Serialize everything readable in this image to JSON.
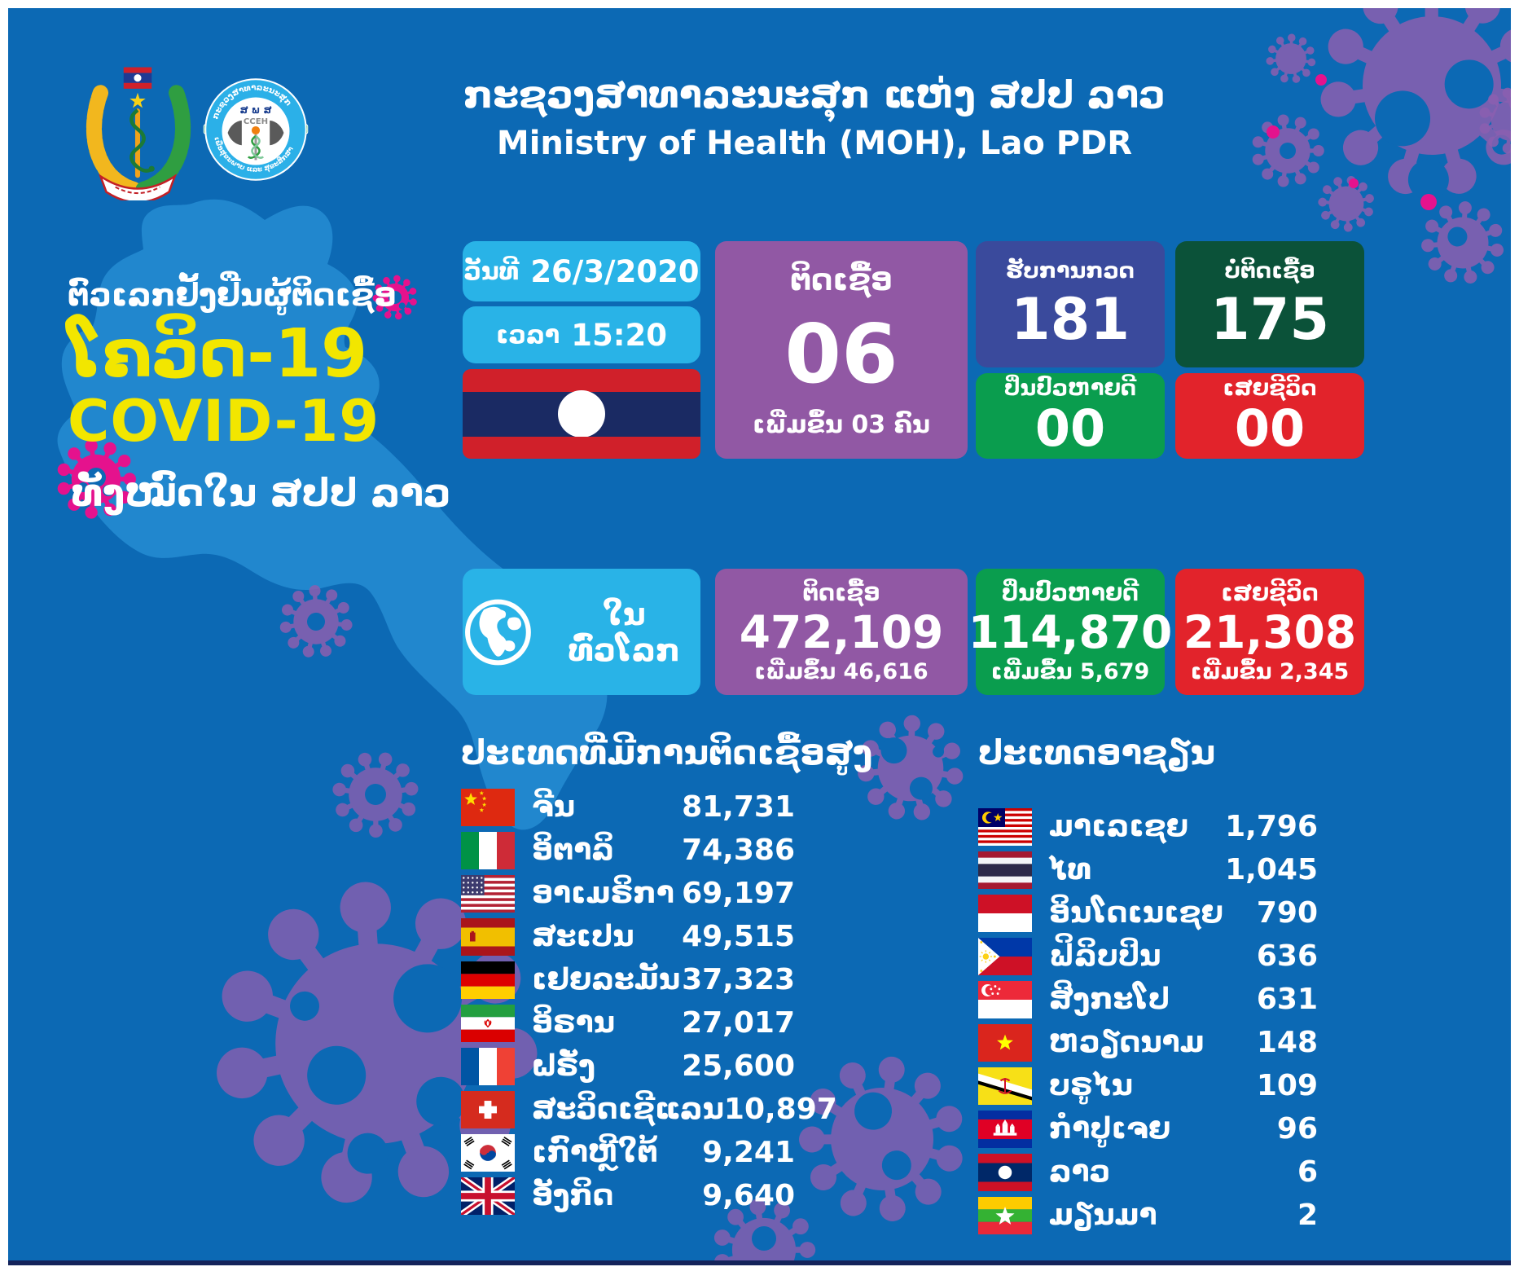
{
  "header": {
    "title_lao": "ກະຊວງສາທາລະນະສຸກ ແຫ່ງ ສປປ ລາວ",
    "title_en": "Ministry of Health (MOH), Lao PDR",
    "cceh": {
      "ring_top": "ກະຊວງສາທາລະນະສຸກ",
      "ring_bottom": "ເພື່ອສຸຂະພາບ ແລະ ສຸຂະສຶກສາ",
      "abbr_lao": "ສ ພ ສ",
      "abbr_en": "CCEH"
    }
  },
  "intro": {
    "line1": "ຕົວເລກຢັ້ງຢືນຜູ້ຕິດເຊື້ອ",
    "covid_lao": "ໂຄວິດ-19",
    "covid_en": "COVID-19",
    "line2": "ທັງໝົດໃນ ສປປ ລາວ"
  },
  "laos_stats": {
    "date_label": "ວັນທີ",
    "date_value": "26/3/2020",
    "time_label": "ເວລາ",
    "time_value": "15:20",
    "infected": {
      "label": "ຕິດເຊື້ອ",
      "value": "06",
      "change": "ເພີ່ມຂຶ້ນ 03 ຄົນ"
    },
    "tested": {
      "label": "ຮັບການກວດ",
      "value": "181"
    },
    "negative": {
      "label": "ບໍ່ຕິດເຊື້ອ",
      "value": "175"
    },
    "recovered": {
      "label": "ປິ່ນປົວຫາຍດີ",
      "value": "00"
    },
    "deaths": {
      "label": "ເສຍຊີວິດ",
      "value": "00"
    }
  },
  "world_stats": {
    "label": "ໃນທົ່ວໂລກ",
    "infected": {
      "label": "ຕິດເຊື້ອ",
      "value": "472,109",
      "change": "ເພີ່ມຂຶ້ນ 46,616"
    },
    "recovered": {
      "label": "ປິ່ນປົວຫາຍດີ",
      "value": "114,870",
      "change": "ເພີ່ມຂຶ້ນ 5,679"
    },
    "deaths": {
      "label": "ເສຍຊີວິດ",
      "value": "21,308",
      "change": "ເພີ່ມຂຶ້ນ 2,345"
    }
  },
  "high_infection_list": {
    "title": "ປະເທດທີ່ມີການຕິດເຊື້ອສູງ",
    "rows": [
      {
        "flag": "china",
        "name": "ຈີນ",
        "value": "81,731"
      },
      {
        "flag": "italy",
        "name": "ອິຕາລິ",
        "value": "74,386"
      },
      {
        "flag": "usa",
        "name": "ອາເມຣິກາ",
        "value": "69,197"
      },
      {
        "flag": "spain",
        "name": "ສະເປນ",
        "value": "49,515"
      },
      {
        "flag": "germany",
        "name": "ເຢຍລະມັນ",
        "value": "37,323"
      },
      {
        "flag": "iran",
        "name": "ອິຣານ",
        "value": "27,017"
      },
      {
        "flag": "france",
        "name": "ຝຣັ່ງ",
        "value": "25,600"
      },
      {
        "flag": "switzerland",
        "name": "ສະວິດເຊີແລນ",
        "value": "10,897"
      },
      {
        "flag": "south-korea",
        "name": "ເກົາຫຼີໃຕ້",
        "value": "9,241"
      },
      {
        "flag": "uk",
        "name": "ອັງກິດ",
        "value": "9,640"
      }
    ]
  },
  "asean_list": {
    "title": "ປະເທດອາຊຽນ",
    "rows": [
      {
        "flag": "malaysia",
        "name": "ມາເລເຊຍ",
        "value": "1,796"
      },
      {
        "flag": "thailand",
        "name": "ໄທ",
        "value": "1,045"
      },
      {
        "flag": "indonesia",
        "name": "ອິນໂດເນເຊຍ",
        "value": "790"
      },
      {
        "flag": "philippines",
        "name": "ຟິລິບປິນ",
        "value": "636"
      },
      {
        "flag": "singapore",
        "name": "ສິງກະໂປ",
        "value": "631"
      },
      {
        "flag": "vietnam",
        "name": "ຫວຽດນາມ",
        "value": "148"
      },
      {
        "flag": "brunei",
        "name": "ບຣູໄນ",
        "value": "109"
      },
      {
        "flag": "cambodia",
        "name": "ກຳປູເຈຍ",
        "value": "96"
      },
      {
        "flag": "laos",
        "name": "ລາວ",
        "value": "6"
      },
      {
        "flag": "myanmar",
        "name": "ມຽນມາ",
        "value": "2"
      }
    ]
  },
  "colors": {
    "background": "#0c69b4",
    "map": "#2187ce",
    "lightblue": "#29b3e7",
    "purple": "#9158a4",
    "indigo": "#3a4a9c",
    "darkgreen": "#0b5239",
    "green": "#0a9d4e",
    "red": "#e2232b",
    "yellow": "#f2e600",
    "virus_purple": "#8b5fb0",
    "virus_magenta": "#e5128d"
  },
  "chart_data": [
    {
      "type": "table",
      "title": "COVID-19 Lao PDR — ວັນທີ 26/3/2020 ເວລາ 15:20",
      "columns": [
        "metric",
        "value"
      ],
      "rows": [
        [
          "ຕິດເຊື້ອ (infected)",
          6
        ],
        [
          "ເພີ່ມຂຶ້ນ (new cases)",
          3
        ],
        [
          "ຮັບການກວດ (tested)",
          181
        ],
        [
          "ບໍ່ຕິດເຊື້ອ (negative)",
          175
        ],
        [
          "ປິ່ນປົວຫາຍດີ (recovered)",
          0
        ],
        [
          "ເສຍຊີວິດ (deaths)",
          0
        ]
      ]
    },
    {
      "type": "table",
      "title": "ໃນທົ່ວໂລກ (Worldwide)",
      "columns": [
        "metric",
        "value",
        "increase"
      ],
      "rows": [
        [
          "ຕິດເຊື້ອ (infected)",
          472109,
          46616
        ],
        [
          "ປິ່ນປົວຫາຍດີ (recovered)",
          114870,
          5679
        ],
        [
          "ເສຍຊີວິດ (deaths)",
          21308,
          2345
        ]
      ]
    },
    {
      "type": "table",
      "title": "ປະເທດທີ່ມີການຕິດເຊື້ອສູງ (Countries with high infections)",
      "columns": [
        "country",
        "cases"
      ],
      "rows": [
        [
          "ຈີນ (China)",
          81731
        ],
        [
          "ອິຕາລິ (Italy)",
          74386
        ],
        [
          "ອາເມຣິກາ (USA)",
          69197
        ],
        [
          "ສະເປນ (Spain)",
          49515
        ],
        [
          "ເຢຍລະມັນ (Germany)",
          37323
        ],
        [
          "ອິຣານ (Iran)",
          27017
        ],
        [
          "ຝຣັ່ງ (France)",
          25600
        ],
        [
          "ສະວິດເຊີແລນ (Switzerland)",
          10897
        ],
        [
          "ເກົາຫຼີໃຕ້ (South Korea)",
          9241
        ],
        [
          "ອັງກິດ (UK)",
          9640
        ]
      ]
    },
    {
      "type": "table",
      "title": "ປະເທດອາຊຽນ (ASEAN countries)",
      "columns": [
        "country",
        "cases"
      ],
      "rows": [
        [
          "ມາເລເຊຍ (Malaysia)",
          1796
        ],
        [
          "ໄທ (Thailand)",
          1045
        ],
        [
          "ອິນໂດເນເຊຍ (Indonesia)",
          790
        ],
        [
          "ຟິລິບປິນ (Philippines)",
          636
        ],
        [
          "ສິງກະໂປ (Singapore)",
          631
        ],
        [
          "ຫວຽດນາມ (Vietnam)",
          148
        ],
        [
          "ບຣູໄນ (Brunei)",
          109
        ],
        [
          "ກຳປູເຈຍ (Cambodia)",
          96
        ],
        [
          "ລາວ (Laos)",
          6
        ],
        [
          "ມຽນມາ (Myanmar)",
          2
        ]
      ]
    }
  ]
}
